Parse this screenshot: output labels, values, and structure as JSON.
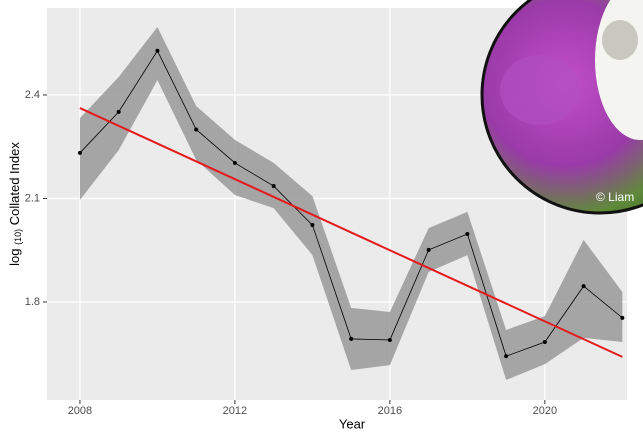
{
  "chart_data": {
    "type": "line",
    "x_label": "Year",
    "y_label_parts": [
      "log",
      "(10)",
      "Collated Index"
    ],
    "x": [
      2008,
      2009,
      2010,
      2011,
      2012,
      2013,
      2014,
      2015,
      2016,
      2017,
      2018,
      2019,
      2020,
      2021,
      2022
    ],
    "values": [
      2.232,
      2.351,
      2.528,
      2.3,
      2.203,
      2.136,
      2.023,
      1.693,
      1.69,
      1.951,
      1.997,
      1.643,
      1.684,
      1.846,
      1.754
    ],
    "ci_upper": [
      2.333,
      2.452,
      2.597,
      2.368,
      2.27,
      2.203,
      2.107,
      1.783,
      1.771,
      2.014,
      2.061,
      1.719,
      1.759,
      1.98,
      1.829
    ],
    "ci_lower": [
      2.096,
      2.24,
      2.443,
      2.212,
      2.11,
      2.072,
      1.936,
      1.603,
      1.617,
      1.887,
      1.936,
      1.574,
      1.62,
      1.696,
      1.684
    ],
    "color": "#000000",
    "band_color": "#999999",
    "trend": {
      "x": [
        2008,
        2022
      ],
      "values": [
        2.362,
        1.641
      ],
      "color": "#e41a1c"
    },
    "xlim": [
      2007.15,
      2022.12
    ],
    "ylim": [
      1.516,
      2.652
    ],
    "xticks": [
      2008,
      2012,
      2016,
      2020
    ],
    "yticks": [
      1.8,
      2.1,
      2.4
    ],
    "grid": true,
    "photo_credit": "© Liam"
  }
}
